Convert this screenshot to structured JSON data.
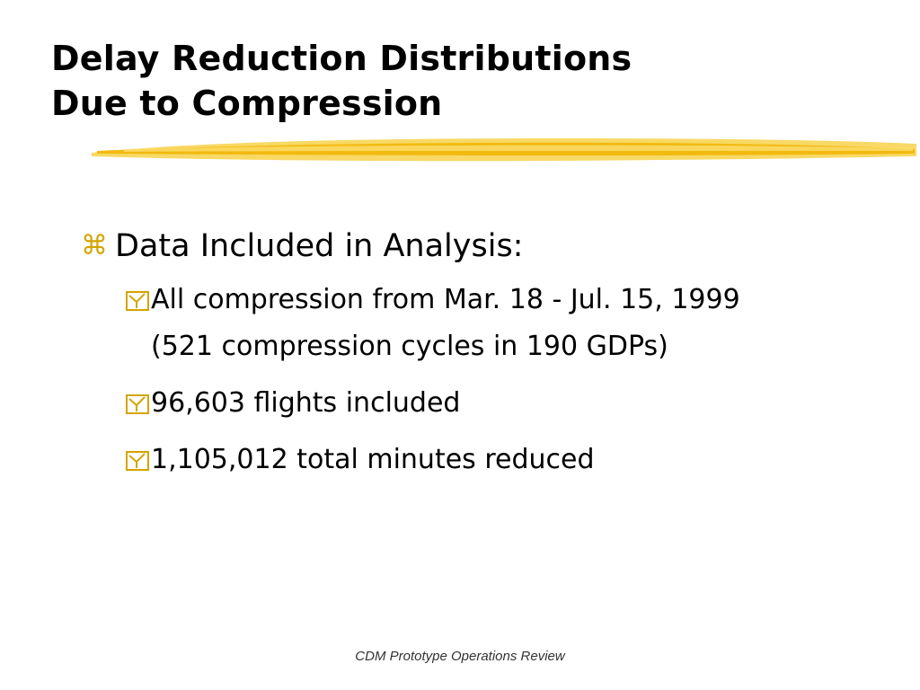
{
  "slide": {
    "title_lines": [
      "Delay Reduction Distributions",
      "Due to Compression"
    ],
    "heading": "Data Included in Analysis:",
    "sub_bullets": [
      {
        "text": "All compression from Mar. 18 - Jul. 15, 1999 (521 compression cycles in 190 GDPs)"
      },
      {
        "text": "96,603 flights included"
      },
      {
        "text": "1,105,012 total minutes reduced"
      }
    ],
    "footer": "CDM Prototype Operations Review"
  },
  "icons": {
    "level1_bullet": "command-key-icon",
    "level2_bullet": "checkbox-icon",
    "underline": "brush-stroke-underline"
  },
  "colors": {
    "accent_yellow": "#f5c518",
    "bullet_gold": "#d4a400",
    "text": "#000000",
    "background": "#ffffff"
  }
}
